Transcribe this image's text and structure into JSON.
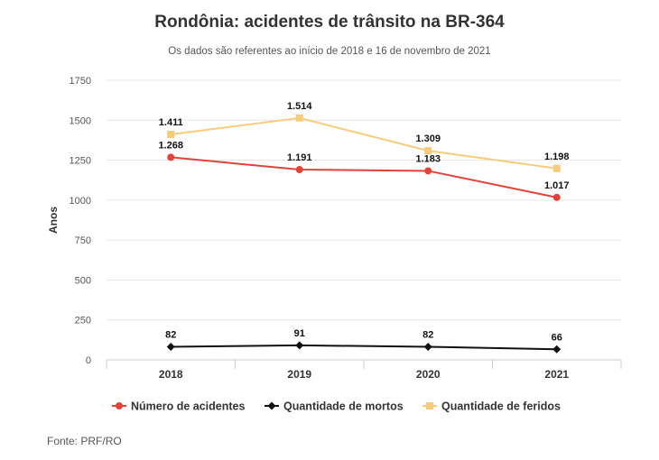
{
  "chart_data": {
    "type": "line",
    "title": "Rondônia: acidentes de trânsito na BR-364",
    "subtitle": "Os dados são referentes ao início de 2018 e 16 de novembro de 2021",
    "xlabel": "",
    "ylabel": "Anos",
    "categories": [
      "2018",
      "2019",
      "2020",
      "2021"
    ],
    "y_ticks": [
      "0",
      "250",
      "500",
      "750",
      "1000",
      "1250",
      "1500",
      "1750"
    ],
    "ylim": [
      0,
      1750
    ],
    "grid": true,
    "legend_position": "bottom",
    "series": [
      {
        "name": "Número de acidentes",
        "values": [
          1268,
          1191,
          1183,
          1017
        ],
        "labels": [
          "1.268",
          "1.191",
          "1.183",
          "1.017"
        ],
        "color": "#e0433a",
        "marker": "circle"
      },
      {
        "name": "Quantidade de mortos",
        "values": [
          82,
          91,
          82,
          66
        ],
        "labels": [
          "82",
          "91",
          "82",
          "66"
        ],
        "color": "#111111",
        "marker": "diamond"
      },
      {
        "name": "Quantidade de feridos",
        "values": [
          1411,
          1514,
          1309,
          1198
        ],
        "labels": [
          "1.411",
          "1.514",
          "1.309",
          "1.198"
        ],
        "color": "#f6cc7c",
        "marker": "square"
      }
    ],
    "source": "Fonte: PRF/RO"
  }
}
